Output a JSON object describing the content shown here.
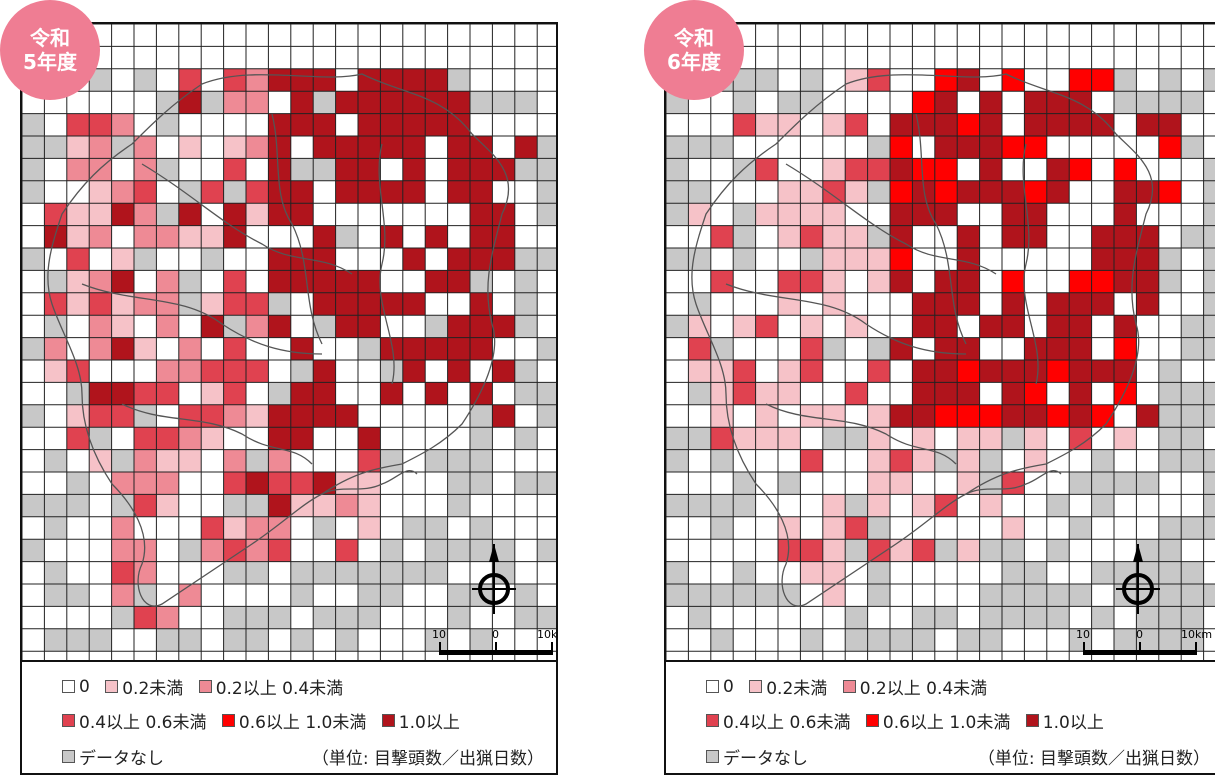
{
  "panels": [
    {
      "badge_line1": "令和",
      "badge_line2": "5年度"
    },
    {
      "badge_line1": "令和",
      "badge_line2": "6年度"
    }
  ],
  "legend": {
    "zero": "0",
    "lt02": "0.2未満",
    "r02_04": "0.2以上 0.4未満",
    "r04_06": "0.4以上 0.6未満",
    "r06_10": "0.6以上 1.0未満",
    "ge10": "1.0以上",
    "nodata": "データなし",
    "unit": "（単位: 目撃頭数／出猟日数）"
  },
  "scale": {
    "left": "10",
    "mid": "0",
    "right": "10km"
  },
  "colors": {
    "lt02": "#f6c2c8",
    "r02_04": "#ee8a95",
    "r04_06": "#e04250",
    "r06_10": "#ff0000",
    "ge10": "#b0141c",
    "nodata": "#c8c8c8"
  }
}
